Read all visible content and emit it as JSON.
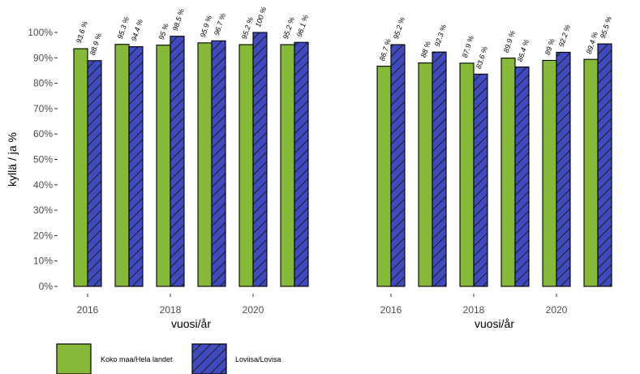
{
  "chart_data": [
    {
      "type": "bar",
      "x": [
        2016,
        2017,
        2018,
        2019,
        2020,
        2021
      ],
      "xticks": [
        "2016",
        "2018",
        "2020"
      ],
      "xlabel": "vuosi/år",
      "ylabel": "kyllä / ja %",
      "ylim": [
        0,
        100
      ],
      "yticks": [
        "0%",
        "10%",
        "20%",
        "30%",
        "40%",
        "50%",
        "60%",
        "70%",
        "80%",
        "90%",
        "100%"
      ],
      "series": [
        {
          "name": "Koko maa/Hela landet",
          "values": [
            93.6,
            95.3,
            95,
            95.9,
            95.2,
            95.2
          ],
          "labels": [
            "93.6 %",
            "95.3 %",
            "95 %",
            "95.9 %",
            "95.2 %",
            "95.2 %"
          ]
        },
        {
          "name": "Loviisa/Lovisa",
          "values": [
            88.9,
            94.4,
            98.5,
            96.7,
            100,
            96.1
          ],
          "labels": [
            "88.9 %",
            "94.4 %",
            "98.5 %",
            "96.7 %",
            "100 %",
            "96.1 %"
          ]
        }
      ]
    },
    {
      "type": "bar",
      "x": [
        2016,
        2017,
        2018,
        2019,
        2020,
        2021
      ],
      "xticks": [
        "2016",
        "2018",
        "2020"
      ],
      "xlabel": "vuosi/år",
      "ylim": [
        0,
        100
      ],
      "series": [
        {
          "name": "Koko maa/Hela landet",
          "values": [
            86.7,
            88,
            87.9,
            89.9,
            89,
            89.4
          ],
          "labels": [
            "86.7 %",
            "88 %",
            "87.9 %",
            "89.9 %",
            "89 %",
            "89.4 %"
          ]
        },
        {
          "name": "Loviisa/Lovisa",
          "values": [
            95.2,
            92.3,
            83.6,
            86.4,
            92.2,
            95.5
          ],
          "labels": [
            "95.2 %",
            "92.3 %",
            "83.6 %",
            "86.4 %",
            "92.2 %",
            "95.5 %"
          ]
        }
      ]
    }
  ],
  "legend": {
    "items": [
      {
        "label": "Koko maa/Hela landet",
        "color": "#86b83a",
        "pattern": "solid"
      },
      {
        "label": "Loviisa/Lovisa",
        "color": "#3f4bbf",
        "pattern": "hatched"
      }
    ]
  }
}
